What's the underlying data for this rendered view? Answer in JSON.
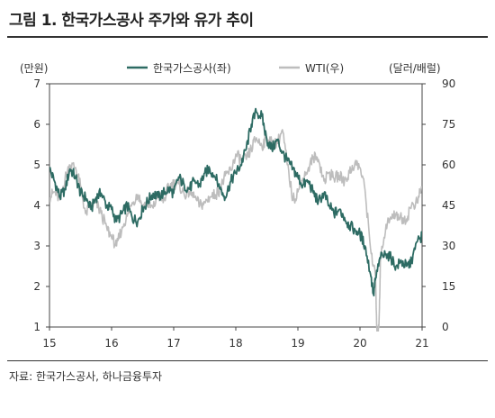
{
  "title": "그림 1. 한국가스공사 주가와 유가 추이",
  "source": "자료: 한국가스공사, 하나금융투자",
  "chart_data": {
    "type": "line",
    "left_axis_label": "(만원)",
    "right_axis_label": "(달러/배럴)",
    "left_ylim": [
      1,
      7
    ],
    "left_ticks": [
      "1",
      "2",
      "3",
      "4",
      "5",
      "6",
      "7"
    ],
    "right_ylim": [
      0,
      90
    ],
    "right_ticks": [
      "0",
      "15",
      "30",
      "45",
      "60",
      "75",
      "90"
    ],
    "xlim": [
      2015.0,
      2021.0
    ],
    "x_ticks": [
      {
        "label": "15",
        "x": 2015
      },
      {
        "label": "16",
        "x": 2016
      },
      {
        "label": "17",
        "x": 2017
      },
      {
        "label": "18",
        "x": 2018
      },
      {
        "label": "19",
        "x": 2019
      },
      {
        "label": "20",
        "x": 2020
      },
      {
        "label": "21",
        "x": 2021
      }
    ],
    "legend_position": "top-center",
    "grid": false,
    "series": [
      {
        "name": "한국가스공사(좌)",
        "axis": "left",
        "color": "#2d6b63",
        "x": [
          2015.0,
          2015.08,
          2015.17,
          2015.25,
          2015.33,
          2015.42,
          2015.5,
          2015.58,
          2015.67,
          2015.75,
          2015.83,
          2015.92,
          2016.0,
          2016.08,
          2016.17,
          2016.25,
          2016.33,
          2016.42,
          2016.5,
          2016.58,
          2016.67,
          2016.75,
          2016.83,
          2016.92,
          2017.0,
          2017.08,
          2017.17,
          2017.25,
          2017.33,
          2017.42,
          2017.5,
          2017.58,
          2017.67,
          2017.75,
          2017.83,
          2017.92,
          2018.0,
          2018.08,
          2018.17,
          2018.25,
          2018.33,
          2018.42,
          2018.5,
          2018.58,
          2018.67,
          2018.75,
          2018.83,
          2018.92,
          2019.0,
          2019.08,
          2019.17,
          2019.25,
          2019.33,
          2019.42,
          2019.5,
          2019.58,
          2019.67,
          2019.75,
          2019.83,
          2019.92,
          2020.0,
          2020.08,
          2020.17,
          2020.22,
          2020.25,
          2020.33,
          2020.42,
          2020.5,
          2020.58,
          2020.67,
          2020.75,
          2020.83,
          2020.92,
          2021.0
        ],
        "y": [
          4.9,
          4.6,
          4.2,
          4.4,
          4.9,
          4.7,
          4.3,
          4.2,
          3.9,
          4.2,
          4.3,
          4.0,
          3.9,
          3.6,
          3.8,
          4.0,
          3.7,
          3.6,
          3.9,
          4.1,
          4.3,
          4.2,
          4.3,
          4.4,
          4.3,
          4.7,
          4.5,
          4.4,
          4.6,
          4.5,
          4.8,
          4.9,
          4.7,
          4.4,
          4.2,
          4.6,
          4.8,
          5.0,
          5.4,
          6.0,
          6.3,
          6.2,
          5.6,
          5.4,
          5.6,
          5.3,
          5.1,
          4.9,
          4.7,
          4.5,
          4.6,
          4.3,
          4.1,
          4.3,
          4.0,
          3.8,
          3.9,
          3.7,
          3.5,
          3.4,
          3.3,
          3.0,
          2.3,
          1.8,
          2.2,
          2.7,
          2.8,
          2.7,
          2.5,
          2.6,
          2.5,
          2.6,
          3.1,
          3.25
        ]
      },
      {
        "name": "WTI(우)",
        "axis": "right",
        "color": "#bdbdbd",
        "x": [
          2015.0,
          2015.08,
          2015.17,
          2015.25,
          2015.33,
          2015.42,
          2015.5,
          2015.58,
          2015.67,
          2015.75,
          2015.83,
          2015.92,
          2016.0,
          2016.08,
          2016.17,
          2016.25,
          2016.33,
          2016.42,
          2016.5,
          2016.58,
          2016.67,
          2016.75,
          2016.83,
          2016.92,
          2017.0,
          2017.08,
          2017.17,
          2017.25,
          2017.33,
          2017.42,
          2017.5,
          2017.58,
          2017.67,
          2017.75,
          2017.83,
          2017.92,
          2018.0,
          2018.08,
          2018.17,
          2018.25,
          2018.33,
          2018.42,
          2018.5,
          2018.58,
          2018.67,
          2018.75,
          2018.83,
          2018.92,
          2019.0,
          2019.08,
          2019.17,
          2019.25,
          2019.33,
          2019.42,
          2019.5,
          2019.58,
          2019.67,
          2019.75,
          2019.83,
          2019.92,
          2020.0,
          2020.08,
          2020.17,
          2020.25,
          2020.28,
          2020.31,
          2020.33,
          2020.42,
          2020.5,
          2020.58,
          2020.67,
          2020.75,
          2020.83,
          2020.92,
          2021.0
        ],
        "y": [
          48,
          50,
          47,
          55,
          60,
          59,
          52,
          42,
          45,
          46,
          42,
          37,
          33,
          30,
          37,
          41,
          46,
          49,
          45,
          45,
          44,
          49,
          46,
          52,
          53,
          53,
          49,
          50,
          48,
          45,
          46,
          48,
          49,
          51,
          56,
          58,
          64,
          62,
          62,
          66,
          70,
          67,
          70,
          68,
          68,
          73,
          60,
          47,
          50,
          55,
          59,
          63,
          62,
          54,
          57,
          55,
          56,
          54,
          57,
          61,
          59,
          51,
          29,
          18,
          -10,
          5,
          25,
          38,
          40,
          42,
          40,
          40,
          45,
          46,
          52
        ]
      }
    ]
  }
}
